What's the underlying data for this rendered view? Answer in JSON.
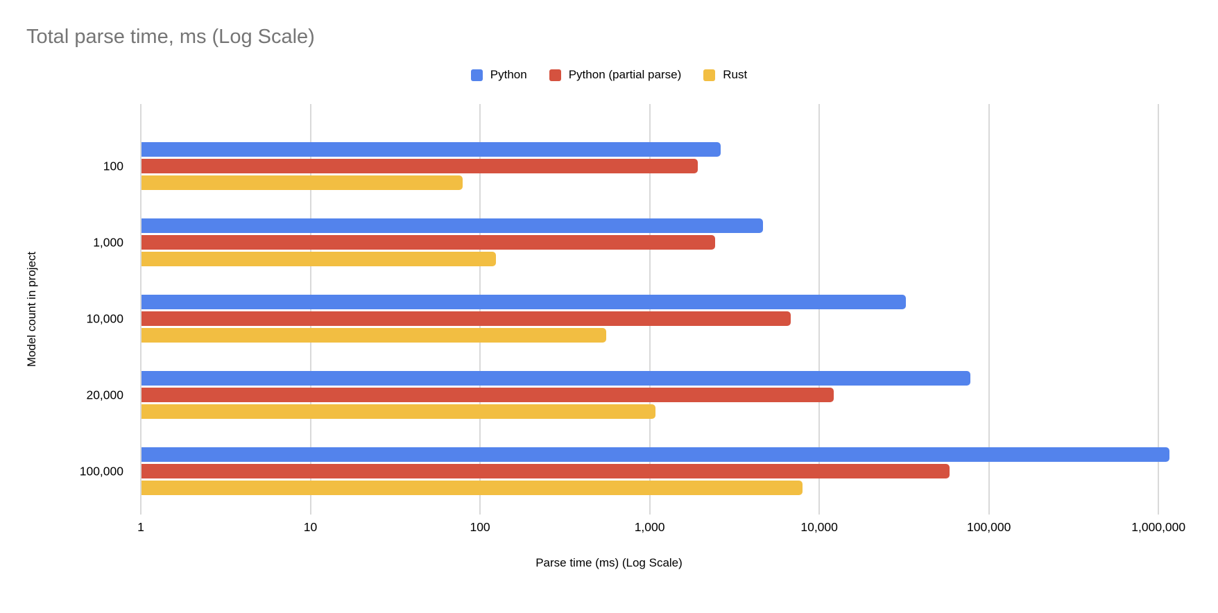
{
  "chart_data": {
    "type": "bar",
    "orientation": "horizontal",
    "title": "Total parse time, ms (Log Scale)",
    "xlabel": "Parse time (ms) (Log Scale)",
    "ylabel": "Model count in project",
    "x_scale": "log",
    "x_ticks": [
      "1",
      "10",
      "100",
      "1,000",
      "10,000",
      "100,000",
      "1,000,000"
    ],
    "xlim": [
      1,
      1349000
    ],
    "grid": true,
    "legend_position": "top",
    "categories": [
      "100",
      "1,000",
      "10,000",
      "20,000",
      "100,000"
    ],
    "series": [
      {
        "name": "Python",
        "color": "#5383EC",
        "values": [
          2600,
          4600,
          32000,
          77000,
          1150000
        ]
      },
      {
        "name": "Python (partial parse)",
        "color": "#D5523F",
        "values": [
          1900,
          2400,
          6700,
          12000,
          58000
        ]
      },
      {
        "name": "Rust",
        "color": "#F2BE42",
        "values": [
          78,
          123,
          550,
          1070,
          7900
        ]
      }
    ],
    "colors": {
      "title_text": "#757575",
      "axis_text": "#000000",
      "gridline": "#D9D9D9"
    }
  }
}
